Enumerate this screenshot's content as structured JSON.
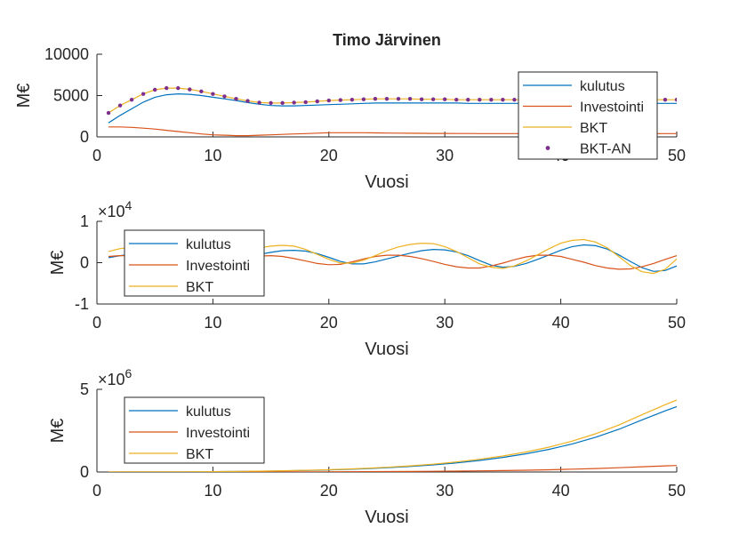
{
  "figure": {
    "title": "Timo Järvinen"
  },
  "colors": {
    "kulutus": "#0072BD",
    "investointi": "#D95319",
    "bkt": "#EDB120",
    "bkt_an": "#7E2F8E",
    "axis": "#262626"
  },
  "chart_data": [
    {
      "type": "line",
      "title": "Timo Järvinen",
      "xlabel": "Vuosi",
      "ylabel": "M€",
      "xlim": [
        0,
        50
      ],
      "ylim": [
        0,
        10000
      ],
      "xticks": [
        "0",
        "10",
        "20",
        "30",
        "40",
        "50"
      ],
      "yticks": [
        "0",
        "5000",
        "10000"
      ],
      "exponent": "",
      "legend": {
        "position": "right",
        "entries": [
          "kulutus",
          "Investointi",
          "BKT",
          "BKT-AN"
        ]
      },
      "x": [
        1,
        2,
        3,
        4,
        5,
        6,
        7,
        8,
        9,
        10,
        11,
        12,
        13,
        14,
        15,
        16,
        17,
        18,
        19,
        20,
        21,
        22,
        23,
        24,
        25,
        26,
        27,
        28,
        29,
        30,
        31,
        32,
        33,
        34,
        35,
        36,
        37,
        38,
        39,
        40,
        41,
        42,
        43,
        44,
        45,
        46,
        47,
        48,
        49,
        50
      ],
      "series": [
        {
          "name": "kulutus",
          "values": [
            1700,
            2600,
            3400,
            4200,
            4800,
            5100,
            5200,
            5150,
            5000,
            4800,
            4600,
            4400,
            4150,
            3950,
            3800,
            3750,
            3750,
            3800,
            3850,
            3900,
            3950,
            4000,
            4050,
            4100,
            4100,
            4100,
            4100,
            4100,
            4100,
            4100,
            4100,
            4050,
            4050,
            4050,
            4050,
            4050,
            4050,
            4050,
            4050,
            4050,
            4050,
            4050,
            4050,
            4050,
            4050,
            4050,
            4050,
            4050,
            4050,
            4050
          ]
        },
        {
          "name": "Investointi",
          "values": [
            1200,
            1200,
            1150,
            1050,
            950,
            800,
            650,
            500,
            350,
            250,
            200,
            150,
            150,
            200,
            250,
            300,
            350,
            400,
            450,
            500,
            500,
            500,
            500,
            480,
            460,
            450,
            440,
            430,
            420,
            420,
            410,
            410,
            400,
            400,
            400,
            400,
            400,
            400,
            400,
            400,
            400,
            400,
            400,
            400,
            400,
            400,
            400,
            400,
            400,
            400
          ]
        },
        {
          "name": "BKT",
          "values": [
            2900,
            3800,
            4500,
            5200,
            5700,
            5900,
            5900,
            5750,
            5500,
            5200,
            4900,
            4600,
            4350,
            4150,
            4100,
            4100,
            4150,
            4200,
            4300,
            4400,
            4450,
            4500,
            4550,
            4600,
            4600,
            4600,
            4600,
            4550,
            4550,
            4550,
            4500,
            4500,
            4500,
            4500,
            4500,
            4500,
            4500,
            4500,
            4500,
            4500,
            4500,
            4500,
            4500,
            4500,
            4500,
            4500,
            4500,
            4500,
            4500,
            4500
          ]
        },
        {
          "name": "BKT-AN",
          "marker": "dot",
          "values": [
            2900,
            3800,
            4500,
            5200,
            5700,
            5900,
            5900,
            5750,
            5500,
            5200,
            4900,
            4600,
            4350,
            4150,
            4100,
            4100,
            4150,
            4200,
            4300,
            4400,
            4450,
            4500,
            4550,
            4600,
            4600,
            4600,
            4600,
            4550,
            4550,
            4550,
            4500,
            4500,
            4500,
            4500,
            4500,
            4500,
            4500,
            4500,
            4500,
            4500,
            4500,
            4500,
            4500,
            4500,
            4500,
            4500,
            4500,
            4500,
            4500,
            4500
          ]
        }
      ]
    },
    {
      "type": "line",
      "xlabel": "Vuosi",
      "ylabel": "M€",
      "xlim": [
        0,
        50
      ],
      "ylim": [
        -10000,
        10000
      ],
      "xticks": [
        "0",
        "10",
        "20",
        "30",
        "40",
        "50"
      ],
      "yticks": [
        "-1",
        "0",
        "1"
      ],
      "exponent": "×10^4",
      "exponent_base": "×10",
      "exponent_power": "4",
      "legend": {
        "position": "top-left",
        "entries": [
          "kulutus",
          "Investointi",
          "BKT"
        ]
      },
      "x": [
        1,
        2,
        3,
        4,
        5,
        6,
        7,
        8,
        9,
        10,
        11,
        12,
        13,
        14,
        15,
        16,
        17,
        18,
        19,
        20,
        21,
        22,
        23,
        24,
        25,
        26,
        27,
        28,
        29,
        30,
        31,
        32,
        33,
        34,
        35,
        36,
        37,
        38,
        39,
        40,
        41,
        42,
        43,
        44,
        45,
        46,
        47,
        48,
        49,
        50
      ],
      "series": [
        {
          "name": "kulutus",
          "values": [
            1200,
            1700,
            2000,
            2200,
            2100,
            1800,
            1300,
            700,
            200,
            0,
            200,
            700,
            1300,
            2000,
            2500,
            2900,
            3000,
            2800,
            2200,
            1300,
            300,
            -300,
            -300,
            200,
            900,
            1600,
            2300,
            2900,
            3200,
            3100,
            2600,
            1700,
            500,
            -600,
            -1100,
            -900,
            -200,
            800,
            1900,
            3000,
            3900,
            4300,
            4100,
            3300,
            1900,
            300,
            -1200,
            -2100,
            -1900,
            -800
          ]
        },
        {
          "name": "Investointi",
          "values": [
            1500,
            1700,
            1700,
            1600,
            1300,
            900,
            500,
            200,
            0,
            100,
            400,
            800,
            1300,
            1600,
            1700,
            1500,
            1000,
            400,
            -200,
            -500,
            -400,
            200,
            900,
            1500,
            1800,
            1800,
            1500,
            1000,
            300,
            -400,
            -1000,
            -1300,
            -1300,
            -800,
            -100,
            700,
            1400,
            1800,
            1800,
            1500,
            800,
            100,
            -700,
            -1300,
            -1600,
            -1500,
            -1000,
            -200,
            800,
            1700
          ]
        },
        {
          "name": "BKT",
          "values": [
            2700,
            3400,
            3700,
            3800,
            3400,
            2700,
            1800,
            900,
            200,
            100,
            600,
            1500,
            2600,
            3600,
            4000,
            4200,
            4000,
            3200,
            2000,
            800,
            -100,
            -100,
            600,
            1700,
            2900,
            3800,
            4400,
            4700,
            4600,
            3900,
            2700,
            1200,
            -300,
            -1100,
            -1400,
            -800,
            400,
            1900,
            3400,
            4700,
            5400,
            5600,
            5000,
            3600,
            1500,
            -700,
            -2200,
            -2600,
            -1600,
            900
          ]
        }
      ]
    },
    {
      "type": "line",
      "xlabel": "Vuosi",
      "ylabel": "M€",
      "xlim": [
        0,
        50
      ],
      "ylim": [
        0,
        5000000
      ],
      "xticks": [
        "0",
        "10",
        "20",
        "30",
        "40",
        "50"
      ],
      "yticks": [
        "0",
        "5"
      ],
      "exponent": "×10^6",
      "exponent_base": "×10",
      "exponent_power": "6",
      "legend": {
        "position": "top-left",
        "entries": [
          "kulutus",
          "Investointi",
          "BKT"
        ]
      },
      "x": [
        1,
        3,
        5,
        7,
        9,
        11,
        13,
        15,
        17,
        19,
        21,
        23,
        25,
        27,
        29,
        31,
        33,
        35,
        37,
        39,
        41,
        43,
        45,
        47,
        49,
        50
      ],
      "series": [
        {
          "name": "kulutus",
          "values": [
            0,
            3000,
            6000,
            10000,
            16000,
            25000,
            38000,
            55000,
            78000,
            108000,
            145000,
            195000,
            258000,
            335000,
            430000,
            550000,
            700000,
            880000,
            1100000,
            1370000,
            1700000,
            2100000,
            2580000,
            3150000,
            3700000,
            3950000
          ]
        },
        {
          "name": "Investointi",
          "values": [
            0,
            300,
            600,
            1000,
            1600,
            2500,
            3800,
            5500,
            7800,
            10800,
            14500,
            19500,
            25800,
            33500,
            43000,
            55000,
            70000,
            88000,
            110000,
            137000,
            170000,
            210000,
            258000,
            315000,
            370000,
            395000
          ]
        },
        {
          "name": "BKT",
          "values": [
            0,
            3300,
            6600,
            11000,
            17600,
            27500,
            41800,
            60500,
            85800,
            118800,
            159500,
            214500,
            283800,
            368500,
            473000,
            605000,
            770000,
            968000,
            1210000,
            1507000,
            1870000,
            2310000,
            2838000,
            3465000,
            4070000,
            4350000
          ]
        }
      ]
    }
  ]
}
